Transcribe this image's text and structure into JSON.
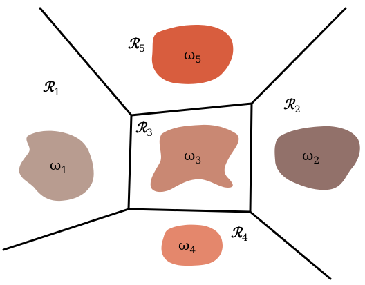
{
  "regions": [
    {
      "id": "r1",
      "letter": "ℛ",
      "sub": "1"
    },
    {
      "id": "r2",
      "letter": "ℛ",
      "sub": "2"
    },
    {
      "id": "r3",
      "letter": "ℛ",
      "sub": "3"
    },
    {
      "id": "r4",
      "letter": "ℛ",
      "sub": "4"
    },
    {
      "id": "r5",
      "letter": "ℛ",
      "sub": "5"
    }
  ],
  "domains": [
    {
      "id": "w1",
      "letter": "ω",
      "sub": "1",
      "color": "#b89c90"
    },
    {
      "id": "w2",
      "letter": "ω",
      "sub": "2",
      "color": "#92716a"
    },
    {
      "id": "w3",
      "letter": "ω",
      "sub": "3",
      "color": "#c98873"
    },
    {
      "id": "w4",
      "letter": "ω",
      "sub": "4",
      "color": "#e4876c"
    },
    {
      "id": "w5",
      "letter": "ω",
      "sub": "5",
      "color": "#d85d3e"
    }
  ]
}
